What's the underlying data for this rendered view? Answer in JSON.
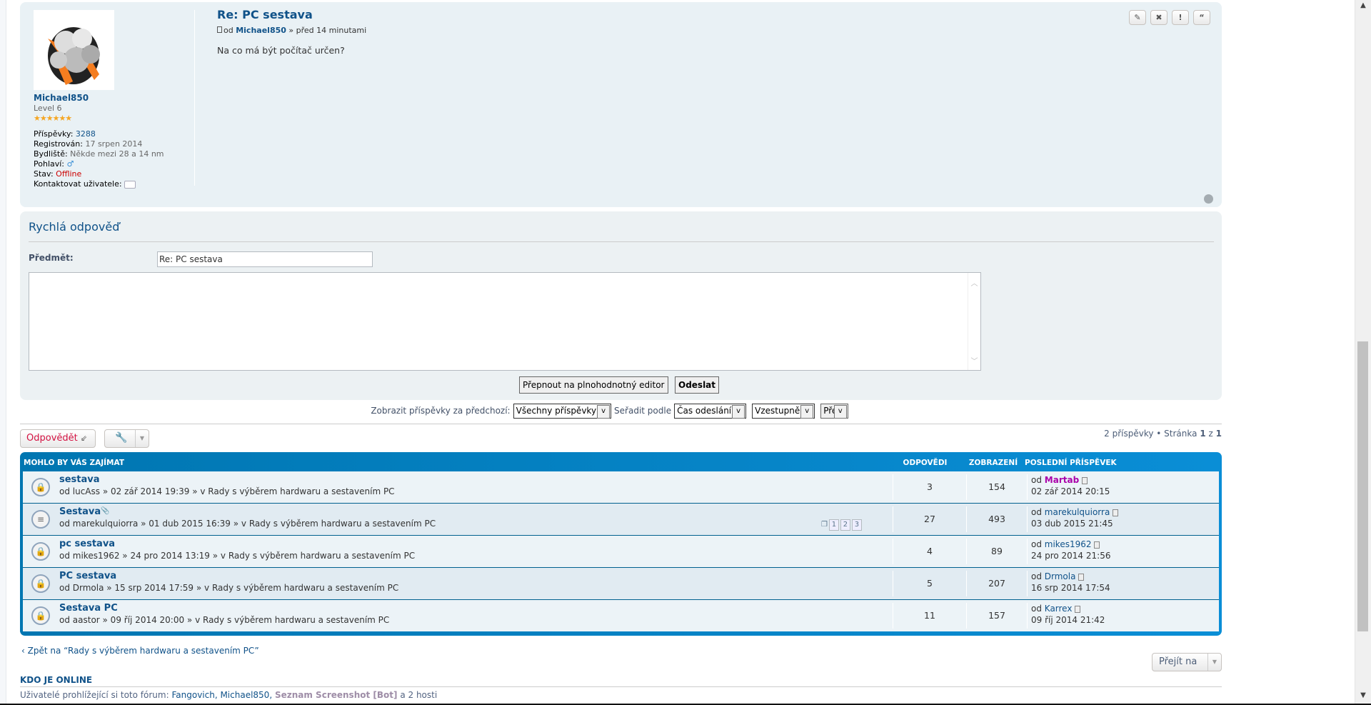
{
  "post": {
    "title": "Re: PC sestava",
    "meta_prefix": "od",
    "author": "Michael850",
    "meta_suffix": "» před 14 minutami",
    "body": "Na co má být počítač určen?",
    "profile": {
      "name": "Michael850",
      "rank": "Level 6",
      "posts_label": "Příspěvky:",
      "posts": "3288",
      "reg_label": "Registrován:",
      "reg": "17 srpen 2014",
      "loc_label": "Bydliště:",
      "loc": "Někde mezi 28 a 14 nm",
      "gender_label": "Pohlaví:",
      "status_label": "Stav:",
      "status": "Offline",
      "contact_label": "Kontaktovat uživatele:"
    },
    "actions": [
      "edit-icon",
      "delete-icon",
      "report-icon",
      "quote-icon"
    ]
  },
  "quick_reply": {
    "heading": "Rychlá odpověď",
    "subject_label": "Předmět:",
    "subject_value": "Re: PC sestava",
    "message_value": "",
    "full_editor": "Přepnout na plnohodnotný editor",
    "submit": "Odeslat"
  },
  "sort": {
    "show_label": "Zobrazit příspěvky za předchozí:",
    "show_value": "Všechny příspěvky",
    "sort_label": "Seřadit podle",
    "sort_value": "Čas odeslání",
    "dir_value": "Vzestupně",
    "go": "Přejít"
  },
  "toolbar": {
    "reply": "Odpovědět",
    "pagination_prefix": "2 příspěvky • Stránka",
    "page": "1",
    "of": "z",
    "pages": "1"
  },
  "similar": {
    "heading": "MOHLO BY VÁS ZAJÍMAT",
    "col_replies": "ODPOVĚDI",
    "col_views": "ZOBRAZENÍ",
    "col_last": "POSLEDNÍ PŘÍSPĚVEK",
    "rows": [
      {
        "title": "sestava",
        "meta": "od lucAss » 02 zář 2014 19:39 » v Rady s výběrem hardwaru a sestavením PC",
        "replies": "3",
        "views": "154",
        "last_by": "Martab",
        "last_time": "02 zář 2014 20:15",
        "icon": "locked"
      },
      {
        "title": "Sestava",
        "meta": "od marekulquiorra » 01 dub 2015 16:39 » v Rady s výběrem hardwaru a sestavením PC",
        "replies": "27",
        "views": "493",
        "last_by": "marekulquiorra",
        "last_time": "03 dub 2015 21:45",
        "icon": "topic",
        "pages": [
          "1",
          "2",
          "3"
        ]
      },
      {
        "title": "pc sestava",
        "meta": "od mikes1962 » 24 pro 2014 13:19 » v Rady s výběrem hardwaru a sestavením PC",
        "replies": "4",
        "views": "89",
        "last_by": "mikes1962",
        "last_time": "24 pro 2014 21:56",
        "icon": "locked"
      },
      {
        "title": "PC sestava",
        "meta": "od Drmola » 15 srp 2014 17:59 » v Rady s výběrem hardwaru a sestavením PC",
        "replies": "5",
        "views": "207",
        "last_by": "Drmola",
        "last_time": "16 srp 2014 17:54",
        "icon": "locked"
      },
      {
        "title": "Sestava PC",
        "meta": "od aastor » 09 říj 2014 20:00 » v Rady s výběrem hardwaru a sestavením PC",
        "replies": "11",
        "views": "157",
        "last_by": "Karrex",
        "last_time": "09 říj 2014 21:42",
        "icon": "locked"
      }
    ]
  },
  "footer": {
    "back": "Zpět na “Rady s výběrem hardwaru a sestavením PC”",
    "goto": "Přejít na",
    "online_heading": "KDO JE ONLINE",
    "online_prefix": "Uživatelé prohlížející si toto fórum:",
    "online_users": "Fangovich, Michael850,",
    "online_bot": "Seznam Screenshot [Bot]",
    "online_suffix": "a 2 hosti"
  },
  "colors": {
    "link": "#105289",
    "header_blue": "#0076b1",
    "offline": "#cc0000",
    "reply_red": "#d31141",
    "bot": "#9e8da7",
    "martab": "#aa00aa"
  }
}
